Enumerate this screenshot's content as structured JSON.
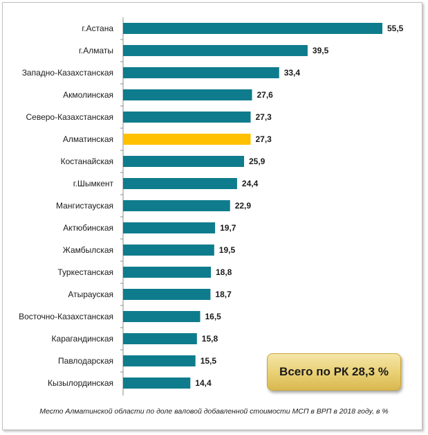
{
  "chart_data": {
    "type": "bar",
    "orientation": "horizontal",
    "categories": [
      "г.Астана",
      "г.Алматы",
      "Западно-Казахстанская",
      "Акмолинская",
      "Северо-Казахстанская",
      "Алматинская",
      "Костанайская",
      "г.Шымкент",
      "Мангистауская",
      "Актюбинская",
      "Жамбылская",
      "Туркестанская",
      "Атырауская",
      "Восточно-Казахстанская",
      "Карагандинская",
      "Павлодарская",
      "Кызылординская"
    ],
    "values": [
      55.5,
      39.5,
      33.4,
      27.6,
      27.3,
      27.3,
      25.9,
      24.4,
      22.9,
      19.7,
      19.5,
      18.8,
      18.7,
      16.5,
      15.8,
      15.5,
      14.4
    ],
    "value_labels": [
      "55,5",
      "39,5",
      "33,4",
      "27,6",
      "27,3",
      "27,3",
      "25,9",
      "24,4",
      "22,9",
      "19,7",
      "19,5",
      "18,8",
      "18,7",
      "16,5",
      "15,8",
      "15,5",
      "14,4"
    ],
    "highlight_index": 5,
    "colors": {
      "bar": "#0e7c8c",
      "highlight": "#ffc000"
    },
    "xlim": [
      0,
      55.5
    ],
    "legend": "none",
    "grid": false
  },
  "total_label": "Всего по РК 28,3 %",
  "caption": "Место  Алматинской области  по доле валовой добавленной стоимости  МСП  в ВРП в 2018 году, в %"
}
